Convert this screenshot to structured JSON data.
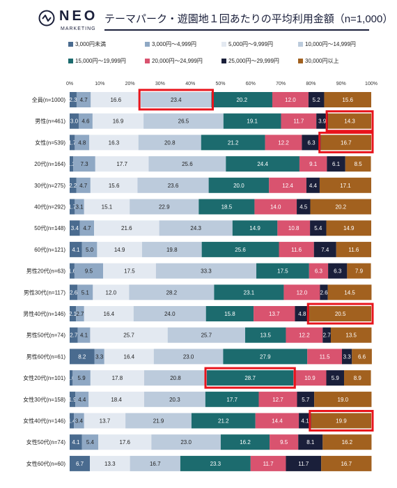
{
  "brand": {
    "logo_text": "NEO",
    "logo_sub": "MARKETING",
    "logo_icon": "neo-circle-wave-icon"
  },
  "title": "テーマパーク・遊園地１回あたりの平均利用金額（n=1,000）",
  "chart_data": {
    "type": "bar",
    "orientation": "horizontal-stacked-100",
    "xlim": [
      0,
      100
    ],
    "x_ticks": [
      "0%",
      "10%",
      "20%",
      "30%",
      "40%",
      "50%",
      "60%",
      "70%",
      "80%",
      "90%",
      "100%"
    ],
    "grid": false,
    "legend_position": "top",
    "categories": [
      "全員(n=1000)",
      "男性(n=461)",
      "女性(n=539)",
      "20代(n=164)",
      "30代(n=275)",
      "40代(n=292)",
      "50代(n=148)",
      "60代(n=121)",
      "男性20代(n=63)",
      "男性30代(n=117)",
      "男性40代(n=146)",
      "男性50代(n=74)",
      "男性60代(n=61)",
      "女性20代(n=101)",
      "女性30代(n=158)",
      "女性40代(n=146)",
      "女性50代(n=74)",
      "女性60代(n=60)"
    ],
    "series": [
      {
        "name": "3,000円未満",
        "color": "#4a6b8f",
        "values": [
          2.3,
          3.0,
          1.7,
          1.2,
          2.2,
          1.7,
          3.4,
          4.1,
          1.6,
          2.6,
          2.1,
          2.7,
          8.2,
          1.0,
          1.9,
          1.4,
          4.1,
          6.7
        ]
      },
      {
        "name": "3,000円～4,999円",
        "color": "#8fa8c4",
        "values": [
          4.7,
          4.6,
          4.8,
          7.3,
          4.7,
          3.1,
          4.7,
          5.0,
          9.5,
          5.1,
          2.7,
          4.1,
          3.3,
          5.9,
          4.4,
          3.4,
          5.4,
          0
        ]
      },
      {
        "name": "5,000円～9,999円",
        "color": "#e3e9f1",
        "values": [
          16.6,
          16.9,
          16.3,
          17.7,
          15.6,
          15.1,
          21.6,
          14.9,
          17.5,
          12.0,
          16.4,
          25.7,
          16.4,
          17.8,
          18.4,
          13.7,
          17.6,
          13.3
        ]
      },
      {
        "name": "10,000円～14,999円",
        "color": "#bccbdc",
        "values": [
          23.4,
          26.5,
          20.8,
          25.6,
          23.6,
          22.9,
          24.3,
          19.8,
          33.3,
          28.2,
          24.0,
          25.7,
          23.0,
          20.8,
          20.3,
          21.9,
          23.0,
          16.7
        ]
      },
      {
        "name": "15,000円～19,999円",
        "color": "#1c6b6e",
        "values": [
          20.2,
          19.1,
          21.2,
          24.4,
          20.0,
          18.5,
          14.9,
          25.6,
          17.5,
          23.1,
          15.8,
          13.5,
          27.9,
          28.7,
          17.7,
          21.2,
          16.2,
          23.3
        ]
      },
      {
        "name": "20,000円～24,999円",
        "color": "#d9536f",
        "values": [
          12.0,
          11.7,
          12.2,
          9.1,
          12.4,
          14.0,
          10.8,
          11.6,
          6.3,
          12.0,
          13.7,
          12.2,
          11.5,
          10.9,
          12.7,
          14.4,
          9.5,
          11.7
        ]
      },
      {
        "name": "25,000円～29,999円",
        "color": "#1a1f3a",
        "values": [
          5.2,
          3.9,
          6.3,
          6.1,
          4.4,
          4.5,
          5.4,
          7.4,
          6.3,
          2.6,
          4.8,
          2.7,
          3.3,
          5.9,
          5.7,
          4.1,
          8.1,
          11.7
        ]
      },
      {
        "name": "30,000円以上",
        "color": "#a2611f",
        "values": [
          15.6,
          14.3,
          16.7,
          8.5,
          17.1,
          20.2,
          14.9,
          11.6,
          7.9,
          14.5,
          20.5,
          13.5,
          6.6,
          8.9,
          19.0,
          19.9,
          16.2,
          16.7
        ]
      }
    ],
    "value_labels": [
      [
        "2.3",
        "4.7",
        "16.6",
        "23.4",
        "20.2",
        "12.0",
        "5.2",
        "15.6"
      ],
      [
        "3.0",
        "4.6",
        "16.9",
        "26.5",
        "19.1",
        "11.7",
        "3.9",
        "14.3"
      ],
      [
        "1.7",
        "4.8",
        "16.3",
        "20.8",
        "21.2",
        "12.2",
        "6.3",
        "16.7"
      ],
      [
        "1.2",
        "7.3",
        "17.7",
        "25.6",
        "24.4",
        "9.1",
        "6.1",
        "8.5"
      ],
      [
        "2.2",
        "4.7",
        "15.6",
        "23.6",
        "20.0",
        "12.4",
        "4.4",
        "17.1"
      ],
      [
        "1.7",
        "3.1",
        "15.1",
        "22.9",
        "18.5",
        "14.0",
        "4.5",
        "20.2"
      ],
      [
        "3.4",
        "4.7",
        "21.6",
        "24.3",
        "14.9",
        "10.8",
        "5.4",
        "14.9"
      ],
      [
        "4.1",
        "5.0",
        "14.9",
        "19.8",
        "25.6",
        "11.6",
        "7.4",
        "11.6"
      ],
      [
        "1.6",
        "9.5",
        "17.5",
        "33.3",
        "17.5",
        "6.3",
        "6.3",
        "7.9"
      ],
      [
        "2.6",
        "5.1",
        "12.0",
        "28.2",
        "23.1",
        "12.0",
        "2.6",
        "14.5"
      ],
      [
        "2.1",
        "2.7",
        "16.4",
        "24.0",
        "15.8",
        "13.7",
        "4.8",
        "20.5"
      ],
      [
        "2.7",
        "4.1",
        "25.7",
        "25.7",
        "13.5",
        "12.2",
        "2.7",
        "13.5"
      ],
      [
        "8.2",
        "3.3",
        "16.4",
        "23.0",
        "27.9",
        "11.5",
        "3.3",
        "6.6"
      ],
      [
        "1.0",
        "5.9",
        "17.8",
        "20.8",
        "28.7",
        "10.9",
        "5.9",
        "8.9"
      ],
      [
        "1.9",
        "4.4",
        "18.4",
        "20.3",
        "17.7",
        "12.7",
        "5.7",
        "19.0"
      ],
      [
        "1.4",
        "3.4",
        "13.7",
        "21.9",
        "21.2",
        "14.4",
        "4.1",
        "19.9"
      ],
      [
        "4.1",
        "5.4",
        "17.6",
        "23.0",
        "16.2",
        "9.5",
        "8.1",
        "16.2"
      ],
      [
        "6.7",
        "",
        "13.3",
        "16.7",
        "23.3",
        "11.7",
        "11.7",
        "16.7"
      ]
    ],
    "highlights": [
      {
        "row": 0,
        "series": 3
      },
      {
        "row": 1,
        "series": 7
      },
      {
        "row": 2,
        "series": 7
      },
      {
        "row": 10,
        "series": 7
      },
      {
        "row": 13,
        "series": 4
      },
      {
        "row": 15,
        "series": 7
      }
    ],
    "highlight_color": "#e8141c"
  }
}
